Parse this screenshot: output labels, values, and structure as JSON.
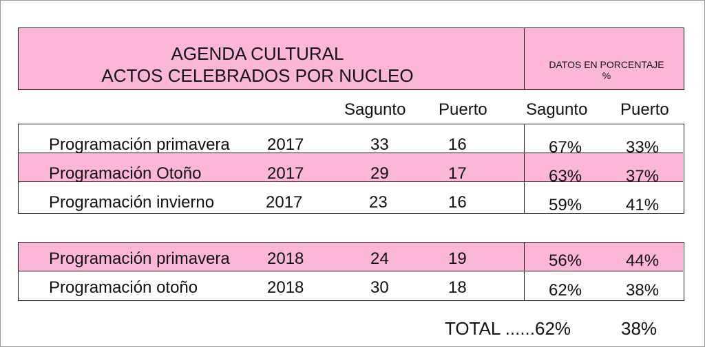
{
  "title_line1": "AGENDA CULTURAL",
  "title_line2": "ACTOS CELEBRADOS POR NUCLEO",
  "percent_header_line1": "DATOS EN PORCENTAJE",
  "percent_header_line2": "%",
  "columns": {
    "sagunto": "Sagunto",
    "puerto": "Puerto",
    "sagunto_pct": "Sagunto",
    "puerto_pct": "Puerto"
  },
  "rows": [
    {
      "program": "Programación primavera",
      "year": "2017",
      "sagunto": "33",
      "puerto": "16",
      "sagunto_pct": "67%",
      "puerto_pct": "33%"
    },
    {
      "program": "Programación Otoño",
      "year": "2017",
      "sagunto": "29",
      "puerto": "17",
      "sagunto_pct": "63%",
      "puerto_pct": "37%"
    },
    {
      "program": "Programación invierno",
      "year": "2017",
      "sagunto": "23",
      "puerto": "16",
      "sagunto_pct": "59%",
      "puerto_pct": "41%"
    },
    {
      "program": "Programación primavera",
      "year": "2018",
      "sagunto": "24",
      "puerto": "19",
      "sagunto_pct": "56%",
      "puerto_pct": "44%"
    },
    {
      "program": "Programación otoño",
      "year": "2018",
      "sagunto": "30",
      "puerto": "18",
      "sagunto_pct": "62%",
      "puerto_pct": "38%"
    }
  ],
  "total": {
    "label": "TOTAL ......62%",
    "puerto_pct": "38%"
  },
  "colors": {
    "pink": "#fbb6da",
    "border": "#1a1a1a"
  }
}
